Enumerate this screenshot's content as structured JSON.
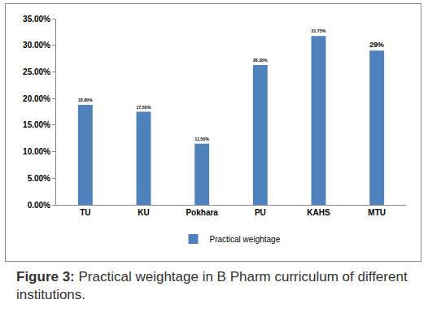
{
  "chart_data": {
    "type": "bar",
    "categories": [
      "TU",
      "KU",
      "Pokhara",
      "PU",
      "KAHS",
      "MTU"
    ],
    "series": [
      {
        "name": "Practical weightage",
        "color": "#4f81bd",
        "values": [
          18.8,
          17.5,
          11.5,
          26.3,
          31.75,
          29
        ],
        "value_labels": [
          "18.80%",
          "17.50%",
          "11.50%",
          "26.30%",
          "31.75%",
          "29%"
        ]
      }
    ],
    "ylim": [
      0,
      35
    ],
    "yticks": [
      {
        "value": 0,
        "label": "0.00%"
      },
      {
        "value": 5,
        "label": "5.00%"
      },
      {
        "value": 10,
        "label": "10.00%"
      },
      {
        "value": 15,
        "label": "15.00%"
      },
      {
        "value": 20,
        "label": "20.00%"
      },
      {
        "value": 25,
        "label": "25.00%"
      },
      {
        "value": 30,
        "label": "30.00%"
      },
      {
        "value": 35,
        "label": "35.00%"
      }
    ],
    "grid": false,
    "data_labels": true,
    "legend": "bottom",
    "annotations": [
      "Figure 3: Practical weightage in B Pharm curriculum of different institutions."
    ]
  }
}
